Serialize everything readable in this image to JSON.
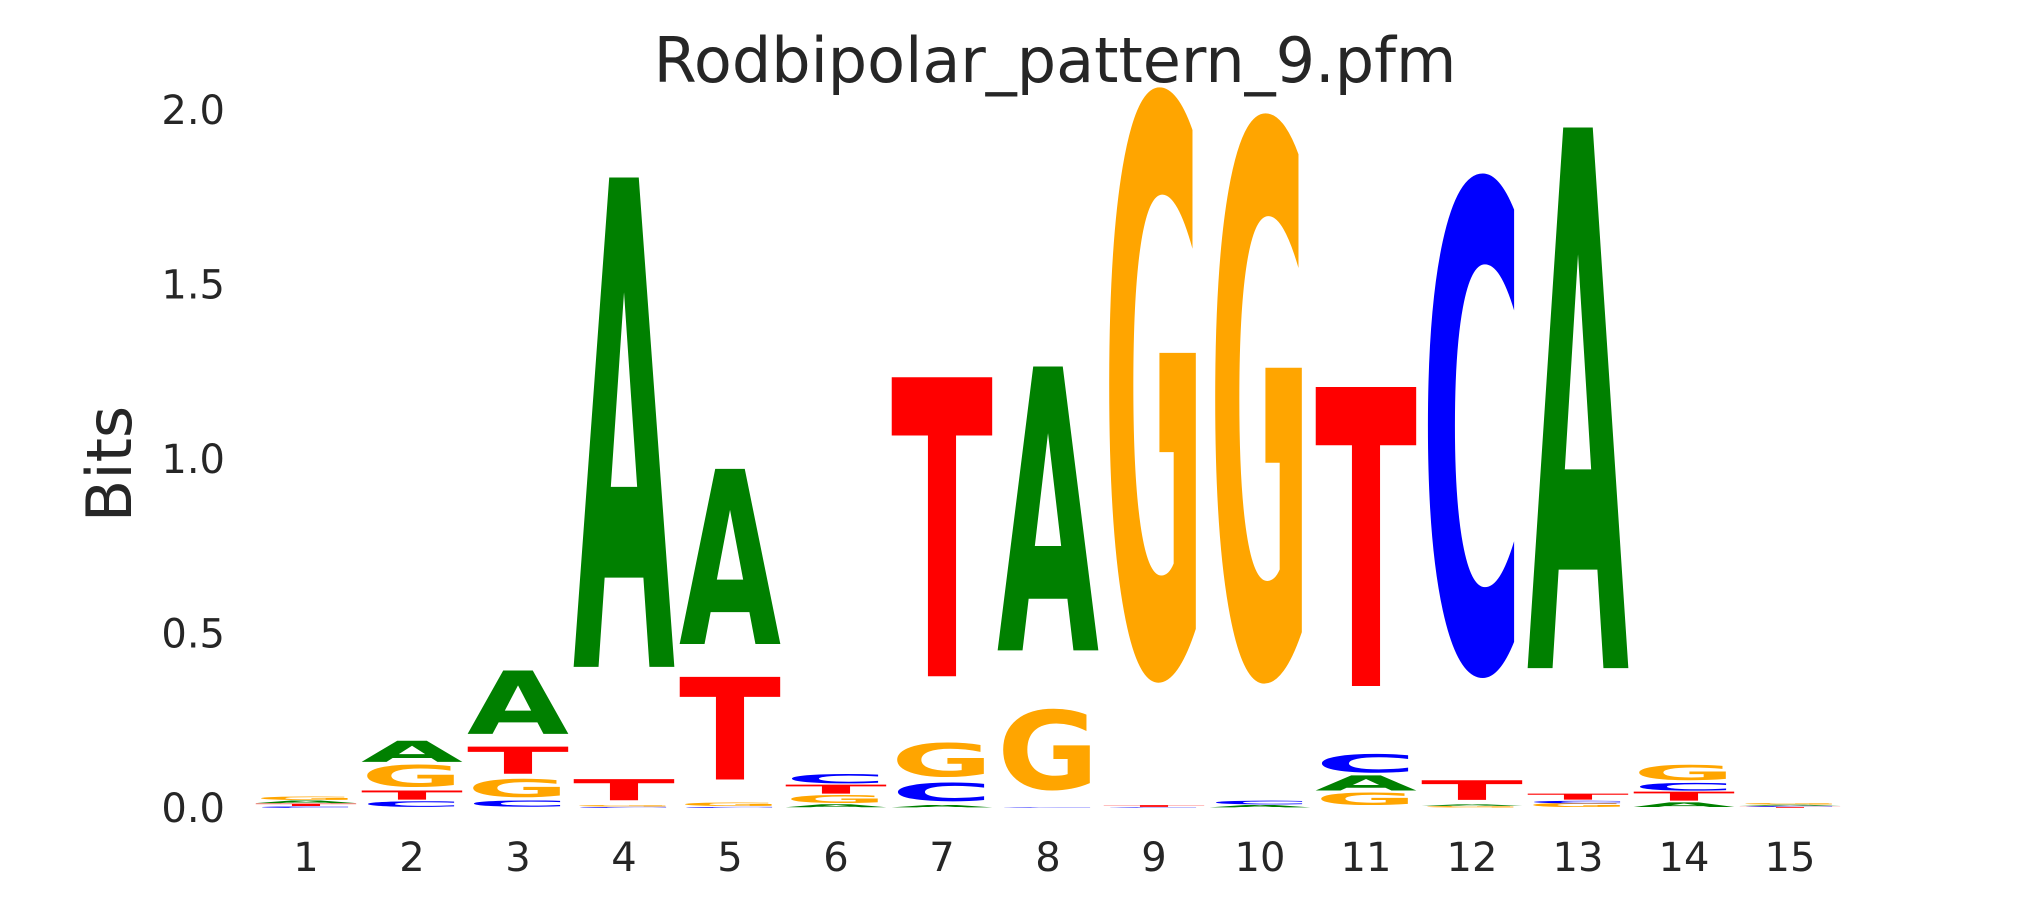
{
  "chart_data": {
    "type": "sequence_logo",
    "title": "Rodbipolar_pattern_9.pfm",
    "xlabel": "",
    "ylabel": "Bits",
    "ylim": [
      0,
      2.0
    ],
    "yticks": [
      "0.0",
      "0.5",
      "1.0",
      "1.5",
      "2.0"
    ],
    "ytick_values": [
      0,
      0.5,
      1.0,
      1.5,
      2.0
    ],
    "positions": [
      "1",
      "2",
      "3",
      "4",
      "5",
      "6",
      "7",
      "8",
      "9",
      "10",
      "11",
      "12",
      "13",
      "14",
      "15"
    ],
    "colors": {
      "A": "#008000",
      "C": "#0000ff",
      "G": "#ffa500",
      "T": "#ff0000"
    },
    "grid": false,
    "columns": [
      {
        "position": 1,
        "stack": [
          {
            "base": "C",
            "bits": 0.004
          },
          {
            "base": "T",
            "bits": 0.008
          },
          {
            "base": "A",
            "bits": 0.009
          },
          {
            "base": "G",
            "bits": 0.01
          }
        ]
      },
      {
        "position": 2,
        "stack": [
          {
            "base": "C",
            "bits": 0.018
          },
          {
            "base": "T",
            "bits": 0.03
          },
          {
            "base": "G",
            "bits": 0.07
          },
          {
            "base": "A",
            "bits": 0.07
          }
        ]
      },
      {
        "position": 3,
        "stack": [
          {
            "base": "C",
            "bits": 0.02
          },
          {
            "base": "G",
            "bits": 0.06
          },
          {
            "base": "T",
            "bits": 0.09
          },
          {
            "base": "A",
            "bits": 0.21
          }
        ]
      },
      {
        "position": 4,
        "stack": [
          {
            "base": "C",
            "bits": 0.003
          },
          {
            "base": "G",
            "bits": 0.005
          },
          {
            "base": "T",
            "bits": 0.07
          },
          {
            "base": "A",
            "bits": 1.62
          }
        ]
      },
      {
        "position": 5,
        "stack": [
          {
            "base": "C",
            "bits": 0.003
          },
          {
            "base": "G",
            "bits": 0.01
          },
          {
            "base": "T",
            "bits": 0.34
          },
          {
            "base": "A",
            "bits": 0.58
          }
        ]
      },
      {
        "position": 6,
        "stack": [
          {
            "base": "A",
            "bits": 0.01
          },
          {
            "base": "G",
            "bits": 0.025
          },
          {
            "base": "T",
            "bits": 0.03
          },
          {
            "base": "C",
            "bits": 0.03
          }
        ]
      },
      {
        "position": 7,
        "stack": [
          {
            "base": "A",
            "bits": 0.008
          },
          {
            "base": "C",
            "bits": 0.06
          },
          {
            "base": "G",
            "bits": 0.11
          },
          {
            "base": "T",
            "bits": 0.99
          }
        ]
      },
      {
        "position": 8,
        "stack": [
          {
            "base": "C",
            "bits": 0.002
          },
          {
            "base": "G",
            "bits": 0.26
          },
          {
            "base": "A",
            "bits": 0.94
          }
        ]
      },
      {
        "position": 9,
        "stack": [
          {
            "base": "C",
            "bits": 0.002
          },
          {
            "base": "T",
            "bits": 0.006
          },
          {
            "base": "G",
            "bits": 1.9
          }
        ]
      },
      {
        "position": 10,
        "stack": [
          {
            "base": "A",
            "bits": 0.008
          },
          {
            "base": "C",
            "bits": 0.012
          },
          {
            "base": "G",
            "bits": 1.82
          }
        ]
      },
      {
        "position": 11,
        "stack": [
          {
            "base": "G",
            "bits": 0.04
          },
          {
            "base": "A",
            "bits": 0.05
          },
          {
            "base": "C",
            "bits": 0.06
          },
          {
            "base": "T",
            "bits": 0.99
          }
        ]
      },
      {
        "position": 12,
        "stack": [
          {
            "base": "G",
            "bits": 0.005
          },
          {
            "base": "A",
            "bits": 0.005
          },
          {
            "base": "T",
            "bits": 0.065
          },
          {
            "base": "C",
            "bits": 1.61
          }
        ]
      },
      {
        "position": 13,
        "stack": [
          {
            "base": "G",
            "bits": 0.012
          },
          {
            "base": "C",
            "bits": 0.008
          },
          {
            "base": "T",
            "bits": 0.02
          },
          {
            "base": "A",
            "bits": 1.79
          }
        ]
      },
      {
        "position": 14,
        "stack": [
          {
            "base": "A",
            "bits": 0.015
          },
          {
            "base": "T",
            "bits": 0.03
          },
          {
            "base": "C",
            "bits": 0.025
          },
          {
            "base": "G",
            "bits": 0.05
          }
        ]
      },
      {
        "position": 15,
        "stack": [
          {
            "base": "T",
            "bits": 0.003
          },
          {
            "base": "C",
            "bits": 0.003
          },
          {
            "base": "A",
            "bits": 0.003
          },
          {
            "base": "G",
            "bits": 0.003
          }
        ]
      }
    ]
  }
}
